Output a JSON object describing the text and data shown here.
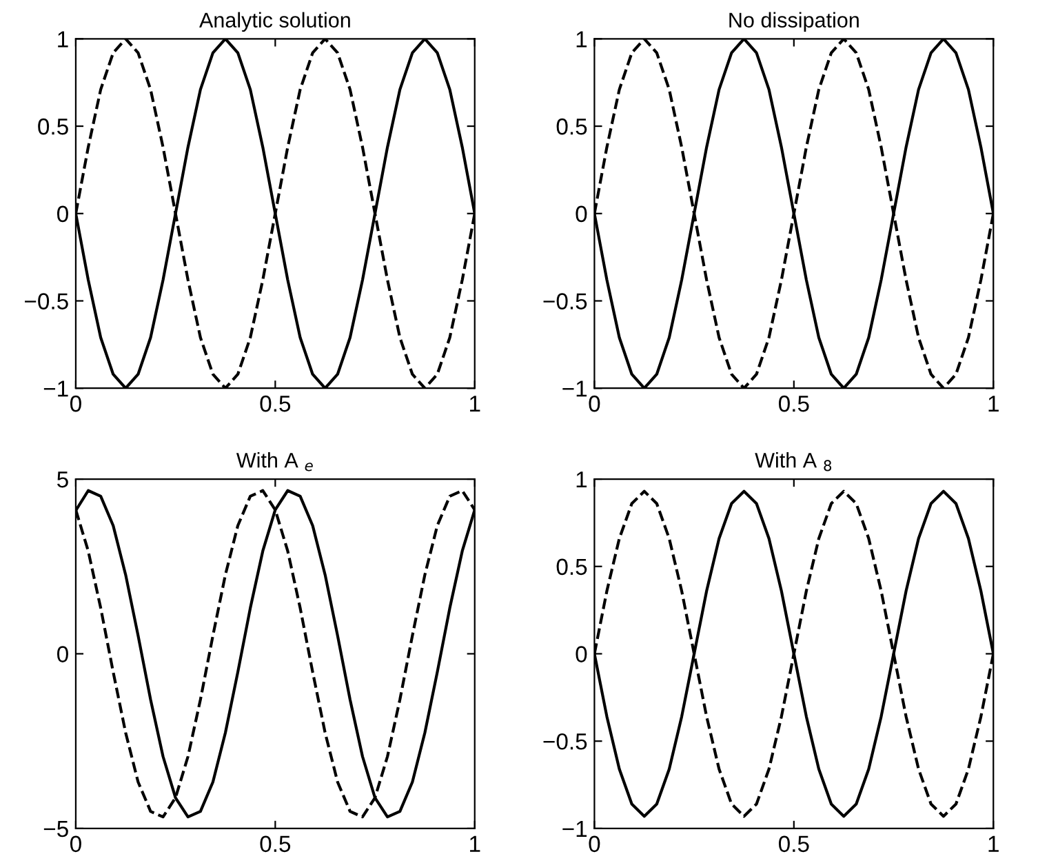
{
  "chart_data": [
    {
      "type": "line",
      "title": "Analytic solution",
      "x": [
        0,
        0.03125,
        0.0625,
        0.09375,
        0.125,
        0.15625,
        0.1875,
        0.21875,
        0.25,
        0.28125,
        0.3125,
        0.34375,
        0.375,
        0.40625,
        0.4375,
        0.46875,
        0.5,
        0.53125,
        0.5625,
        0.59375,
        0.625,
        0.65625,
        0.6875,
        0.71875,
        0.75,
        0.78125,
        0.8125,
        0.84375,
        0.875,
        0.90625,
        0.9375,
        0.96875,
        1
      ],
      "series": [
        {
          "color": "#000000",
          "line_style": "solid",
          "values": [
            0,
            -0.38,
            -0.71,
            -0.92,
            -1,
            -0.92,
            -0.71,
            -0.38,
            0,
            0.38,
            0.71,
            0.92,
            1,
            0.92,
            0.71,
            0.38,
            0,
            -0.38,
            -0.71,
            -0.92,
            -1,
            -0.92,
            -0.71,
            -0.38,
            0,
            0.38,
            0.71,
            0.92,
            1,
            0.92,
            0.71,
            0.38,
            0
          ]
        },
        {
          "color": "#000000",
          "line_style": "dashed",
          "values": [
            0,
            0.38,
            0.71,
            0.92,
            1,
            0.92,
            0.71,
            0.38,
            0,
            -0.38,
            -0.71,
            -0.92,
            -1,
            -0.92,
            -0.71,
            -0.38,
            0,
            0.38,
            0.71,
            0.92,
            1,
            0.92,
            0.71,
            0.38,
            0,
            -0.38,
            -0.71,
            -0.92,
            -1,
            -0.92,
            -0.71,
            -0.38,
            0
          ]
        }
      ],
      "xlim": [
        0,
        1
      ],
      "xticks": [
        0,
        0.5,
        1
      ],
      "ylim": [
        -1,
        1
      ],
      "yticks": [
        {
          "value": -1,
          "label": "−1"
        },
        {
          "value": -0.5,
          "label": "−0.5"
        },
        0,
        0.5,
        1
      ],
      "grid": false
    },
    {
      "type": "line",
      "title": "No dissipation",
      "x": [
        0,
        0.03125,
        0.0625,
        0.09375,
        0.125,
        0.15625,
        0.1875,
        0.21875,
        0.25,
        0.28125,
        0.3125,
        0.34375,
        0.375,
        0.40625,
        0.4375,
        0.46875,
        0.5,
        0.53125,
        0.5625,
        0.59375,
        0.625,
        0.65625,
        0.6875,
        0.71875,
        0.75,
        0.78125,
        0.8125,
        0.84375,
        0.875,
        0.90625,
        0.9375,
        0.96875,
        1
      ],
      "series": [
        {
          "color": "#000000",
          "line_style": "solid",
          "values": [
            0,
            -0.38,
            -0.71,
            -0.92,
            -1,
            -0.92,
            -0.71,
            -0.38,
            0,
            0.38,
            0.71,
            0.92,
            1,
            0.92,
            0.71,
            0.38,
            0,
            -0.38,
            -0.71,
            -0.92,
            -1,
            -0.92,
            -0.71,
            -0.38,
            0,
            0.38,
            0.71,
            0.92,
            1,
            0.92,
            0.71,
            0.38,
            0
          ]
        },
        {
          "color": "#000000",
          "line_style": "dashed",
          "values": [
            0,
            0.38,
            0.71,
            0.92,
            1,
            0.92,
            0.71,
            0.38,
            0,
            -0.38,
            -0.71,
            -0.92,
            -1,
            -0.92,
            -0.71,
            -0.38,
            0,
            0.38,
            0.71,
            0.92,
            1,
            0.92,
            0.71,
            0.38,
            0,
            -0.38,
            -0.71,
            -0.92,
            -1,
            -0.92,
            -0.71,
            -0.38,
            0
          ]
        }
      ],
      "xlim": [
        0,
        1
      ],
      "xticks": [
        0,
        0.5,
        1
      ],
      "ylim": [
        -1,
        1
      ],
      "yticks": [
        {
          "value": -1,
          "label": "−1"
        },
        {
          "value": -0.5,
          "label": "−0.5"
        },
        0,
        0.5,
        1
      ],
      "grid": false
    },
    {
      "type": "line",
      "title": "With A $_{e}$",
      "x": [
        0,
        0.03125,
        0.0625,
        0.09375,
        0.125,
        0.15625,
        0.1875,
        0.21875,
        0.25,
        0.28125,
        0.3125,
        0.34375,
        0.375,
        0.40625,
        0.4375,
        0.46875,
        0.5,
        0.53125,
        0.5625,
        0.59375,
        0.625,
        0.65625,
        0.6875,
        0.71875,
        0.75,
        0.78125,
        0.8125,
        0.84375,
        0.875,
        0.90625,
        0.9375,
        0.96875,
        1
      ],
      "series": [
        {
          "color": "#000000",
          "line_style": "solid",
          "values": [
            4.1,
            4.67,
            4.51,
            3.67,
            2.26,
            0.52,
            -1.31,
            -2.94,
            -4.12,
            -4.67,
            -4.51,
            -3.67,
            -2.26,
            -0.52,
            1.31,
            2.94,
            4.12,
            4.67,
            4.51,
            3.67,
            2.26,
            0.52,
            -1.31,
            -2.94,
            -4.12,
            -4.67,
            -4.51,
            -3.67,
            -2.26,
            -0.52,
            1.31,
            2.94,
            4.12
          ]
        },
        {
          "color": "#000000",
          "line_style": "dashed",
          "values": [
            4.12,
            2.94,
            1.31,
            -0.52,
            -2.26,
            -3.67,
            -4.51,
            -4.67,
            -4.12,
            -2.94,
            -1.31,
            0.52,
            2.26,
            3.67,
            4.51,
            4.67,
            4.12,
            2.94,
            1.31,
            -0.52,
            -2.26,
            -3.67,
            -4.51,
            -4.67,
            -4.12,
            -2.94,
            -1.31,
            0.52,
            2.26,
            3.67,
            4.51,
            4.67,
            4.12
          ]
        }
      ],
      "xlim": [
        0,
        1
      ],
      "xticks": [
        0,
        0.5,
        1
      ],
      "ylim": [
        -5,
        5
      ],
      "yticks": [
        {
          "value": -5,
          "label": "−5"
        },
        0,
        5
      ],
      "grid": false
    },
    {
      "type": "line",
      "title": "With A $_{8}$",
      "x": [
        0,
        0.03125,
        0.0625,
        0.09375,
        0.125,
        0.15625,
        0.1875,
        0.21875,
        0.25,
        0.28125,
        0.3125,
        0.34375,
        0.375,
        0.40625,
        0.4375,
        0.46875,
        0.5,
        0.53125,
        0.5625,
        0.59375,
        0.625,
        0.65625,
        0.6875,
        0.71875,
        0.75,
        0.78125,
        0.8125,
        0.84375,
        0.875,
        0.90625,
        0.9375,
        0.96875,
        1
      ],
      "series": [
        {
          "color": "#000000",
          "line_style": "solid",
          "values": [
            0,
            -0.36,
            -0.66,
            -0.86,
            -0.93,
            -0.86,
            -0.66,
            -0.36,
            0,
            0.36,
            0.66,
            0.86,
            0.93,
            0.86,
            0.66,
            0.36,
            0,
            -0.36,
            -0.66,
            -0.86,
            -0.93,
            -0.86,
            -0.66,
            -0.36,
            0,
            0.36,
            0.66,
            0.86,
            0.93,
            0.86,
            0.66,
            0.36,
            0
          ]
        },
        {
          "color": "#000000",
          "line_style": "dashed",
          "values": [
            0,
            0.36,
            0.66,
            0.86,
            0.93,
            0.86,
            0.66,
            0.36,
            0,
            -0.36,
            -0.66,
            -0.86,
            -0.93,
            -0.86,
            -0.66,
            -0.36,
            0,
            0.36,
            0.66,
            0.86,
            0.93,
            0.86,
            0.66,
            0.36,
            0,
            -0.36,
            -0.66,
            -0.86,
            -0.93,
            -0.86,
            -0.66,
            -0.36,
            0
          ]
        }
      ],
      "xlim": [
        0,
        1
      ],
      "xticks": [
        0,
        0.5,
        1
      ],
      "ylim": [
        -1,
        1
      ],
      "yticks": [
        {
          "value": -1,
          "label": "−1"
        },
        {
          "value": -0.5,
          "label": "−0.5"
        },
        0,
        0.5,
        1
      ],
      "grid": false
    }
  ]
}
